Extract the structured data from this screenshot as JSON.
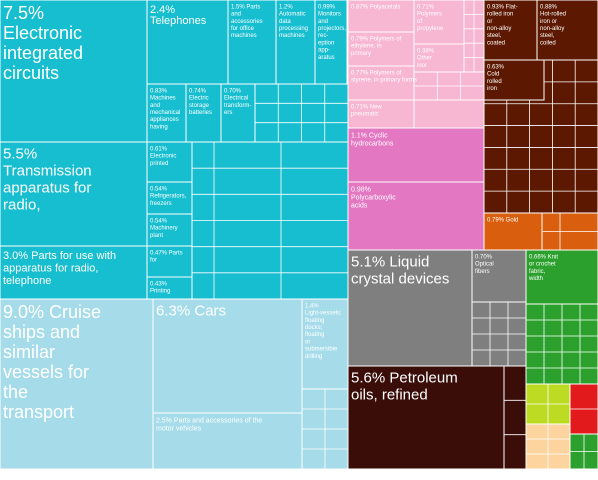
{
  "chart_data": {
    "type": "treemap",
    "title": "",
    "groups": [
      {
        "name": "machinery",
        "color": "#17becf"
      },
      {
        "name": "transportation",
        "color": "#a6dce9"
      },
      {
        "name": "chemicals",
        "color": "#f7b6d2"
      },
      {
        "name": "plastics",
        "color": "#e377c2"
      },
      {
        "name": "metals",
        "color": "#5c1800"
      },
      {
        "name": "precious-metals",
        "color": "#d95f0e"
      },
      {
        "name": "instruments",
        "color": "#7f7f7f"
      },
      {
        "name": "mineral-products",
        "color": "#3a0d08"
      },
      {
        "name": "textiles",
        "color": "#2ca02c"
      },
      {
        "name": "misc-yellow-green",
        "color": "#bcdb22"
      },
      {
        "name": "misc-red",
        "color": "#e31a1c"
      },
      {
        "name": "misc-tan",
        "color": "#fdd49e"
      }
    ],
    "items": [
      {
        "group": "machinery",
        "line1": "7.5%",
        "line2": "Electronic",
        "line3": "integrated",
        "line4": "circuits",
        "value": 7.5
      },
      {
        "group": "machinery",
        "line1": "5.5%",
        "line2": "Transmission",
        "line3": "apparatus for",
        "line4": "radio,",
        "value": 5.5
      },
      {
        "group": "machinery",
        "line1": "3.0% Parts for use with",
        "line2": "apparatus for radio,",
        "line3": "telephone",
        "value": 3.0
      },
      {
        "group": "machinery",
        "line1": "2.4%",
        "line2": "Telephones",
        "value": 2.4
      },
      {
        "group": "machinery",
        "line1": "1.5% Parts",
        "line2": "and",
        "line3": "accessories",
        "line4": "for office",
        "line5": "machines",
        "value": 1.5
      },
      {
        "group": "machinery",
        "line1": "1.2%",
        "line2": "Automatic",
        "line3": "data",
        "line4": "processing",
        "line5": "machines",
        "value": 1.2
      },
      {
        "group": "machinery",
        "line1": "0.99%",
        "line2": "Monitors",
        "line3": "and",
        "line4": "projectors,",
        "line5": "rec-",
        "line6": "eption",
        "line7": "app-",
        "line8": "aratus",
        "value": 0.99
      },
      {
        "group": "machinery",
        "line1": "0.83%",
        "line2": "Machines",
        "line3": "and",
        "line4": "mechanical",
        "line5": "appliances",
        "line6": "having",
        "value": 0.83
      },
      {
        "group": "machinery",
        "line1": "0.74%",
        "line2": "Electric",
        "line3": "storage",
        "line4": "batteries",
        "value": 0.74
      },
      {
        "group": "machinery",
        "line1": "0.70%",
        "line2": "Electrical",
        "line3": "transform-",
        "line4": "ers",
        "value": 0.7
      },
      {
        "group": "machinery",
        "line1": "0.61%",
        "line2": "Electronic",
        "line3": "printed",
        "value": 0.61
      },
      {
        "group": "machinery",
        "line1": "0.54%",
        "line2": "Refrigerators,",
        "line3": "freezers",
        "value": 0.54
      },
      {
        "group": "machinery",
        "line1": "0.54%",
        "line2": "Machinery",
        "line3": "plant",
        "value": 0.54
      },
      {
        "group": "machinery",
        "line1": "0.47% Parts",
        "line2": "for",
        "value": 0.47
      },
      {
        "group": "machinery",
        "line1": "0.43%",
        "line2": "Printing",
        "value": 0.43
      },
      {
        "group": "transportation",
        "line1": "9.0% Cruise",
        "line2": "ships and",
        "line3": "similar",
        "line4": "vessels for",
        "line5": "the",
        "line6": "transport",
        "value": 9.0
      },
      {
        "group": "transportation",
        "line1": "6.3% Cars",
        "value": 6.3
      },
      {
        "group": "transportation",
        "line1": "2.5% Parts and accessories of the",
        "line2": "motor vehicles",
        "value": 2.5
      },
      {
        "group": "transportation",
        "line1": "1.4%",
        "line2": "Light-vessels;",
        "line3": "floating",
        "line4": "docks;",
        "line5": "floating",
        "line6": "or",
        "line7": "submersible",
        "line8": "drilling",
        "value": 1.4
      },
      {
        "group": "chemicals",
        "line1": "0.87% Polyacetals",
        "value": 0.87
      },
      {
        "group": "chemicals",
        "line1": "0.71%",
        "line2": "Polymers",
        "line3": "of",
        "line4": "propylene",
        "value": 0.71
      },
      {
        "group": "chemicals",
        "line1": "0.79% Polymers of",
        "line2": "ethylene, in",
        "line3": "primary",
        "value": 0.79
      },
      {
        "group": "chemicals",
        "line1": "0.38%",
        "line2": "Other",
        "line3": "inor",
        "value": 0.38
      },
      {
        "group": "chemicals",
        "line1": "0.77% Polymers of",
        "line2": "styrene, in primary forms",
        "value": 0.77
      },
      {
        "group": "chemicals",
        "line1": "0.71% New",
        "line2": "pneumatic",
        "value": 0.71
      },
      {
        "group": "plastics",
        "line1": "1.1% Cyclic",
        "line2": "hydrocarbons",
        "value": 1.1
      },
      {
        "group": "plastics",
        "line1": "0.98%",
        "line2": "Polycarboxylic",
        "line3": "acids",
        "value": 0.98
      },
      {
        "group": "metals",
        "line1": "0.93% Flat-",
        "line2": "rolled iron",
        "line3": "or",
        "line4": "non-alloy",
        "line5": "steel,",
        "line6": "coated",
        "value": 0.93
      },
      {
        "group": "metals",
        "line1": "0.88%",
        "line2": "Hot-rolled",
        "line3": "iron or",
        "line4": "non-alloy",
        "line5": "steel,",
        "line6": "coiled",
        "value": 0.88
      },
      {
        "group": "metals",
        "line1": "0.63%",
        "line2": "Cold",
        "line3": "rolled",
        "line4": "iron",
        "value": 0.63
      },
      {
        "group": "precious-metals",
        "line1": "0.79% Gold",
        "value": 0.79
      },
      {
        "group": "instruments",
        "line1": "5.1% Liquid",
        "line2": "crystal devices",
        "value": 5.1
      },
      {
        "group": "instruments",
        "line1": "0.70%",
        "line2": "Optical",
        "line3": "fibers",
        "value": 0.7
      },
      {
        "group": "mineral-products",
        "line1": "5.6% Petroleum",
        "line2": "oils, refined",
        "value": 5.6
      },
      {
        "group": "textiles",
        "line1": "0.66% Knit",
        "line2": "or crochet",
        "line3": "fabric,",
        "line4": "width",
        "value": 0.66
      }
    ]
  }
}
